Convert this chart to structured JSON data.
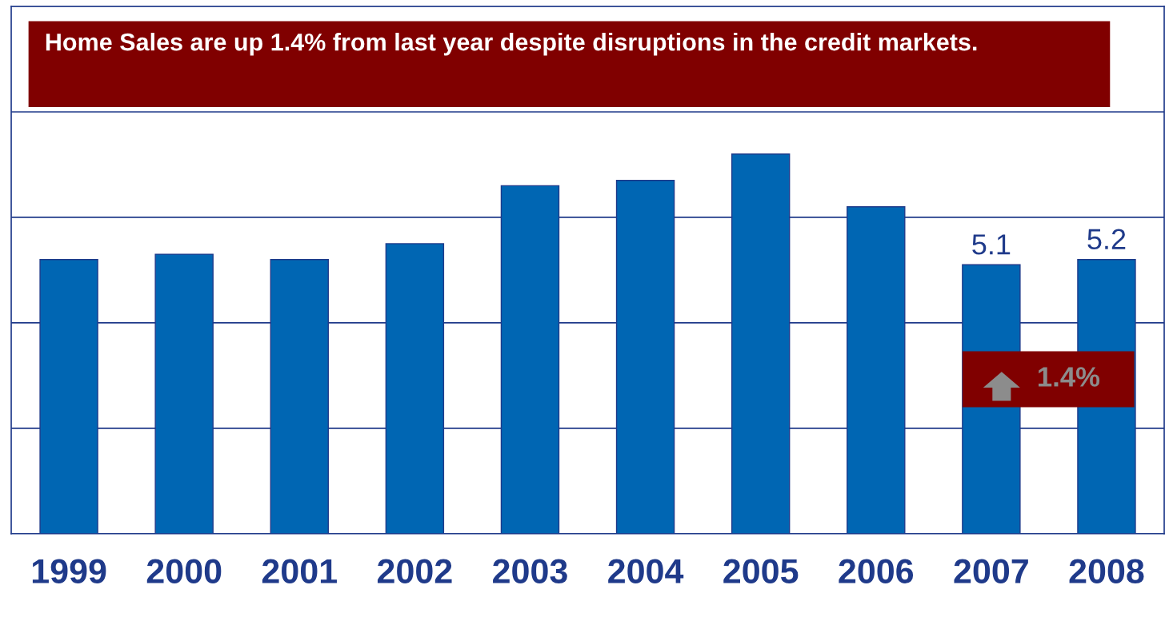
{
  "chart_data": {
    "type": "bar",
    "title": "Home Sales are up 1.4% from last year despite disruptions in the credit markets.",
    "categories": [
      "1999",
      "2000",
      "2001",
      "2002",
      "2003",
      "2004",
      "2005",
      "2006",
      "2007",
      "2008"
    ],
    "values": [
      5.2,
      5.3,
      5.2,
      5.5,
      6.6,
      6.7,
      7.2,
      6.2,
      5.1,
      5.2
    ],
    "value_labels": [
      null,
      null,
      null,
      null,
      null,
      null,
      null,
      null,
      "5.1",
      "5.2"
    ],
    "color": "#0066b3",
    "ylim": [
      0,
      10
    ],
    "yticks": [
      {
        "value": 0,
        "label": null
      },
      {
        "value": 2,
        "label": null
      },
      {
        "value": 4,
        "label": null
      },
      {
        "value": 6,
        "label": null
      },
      {
        "value": 8,
        "label": null
      },
      {
        "value": 10,
        "label": null
      }
    ],
    "tick_labels": "x",
    "grid": "y",
    "legend": false,
    "annotations": [
      "1.4%"
    ]
  }
}
